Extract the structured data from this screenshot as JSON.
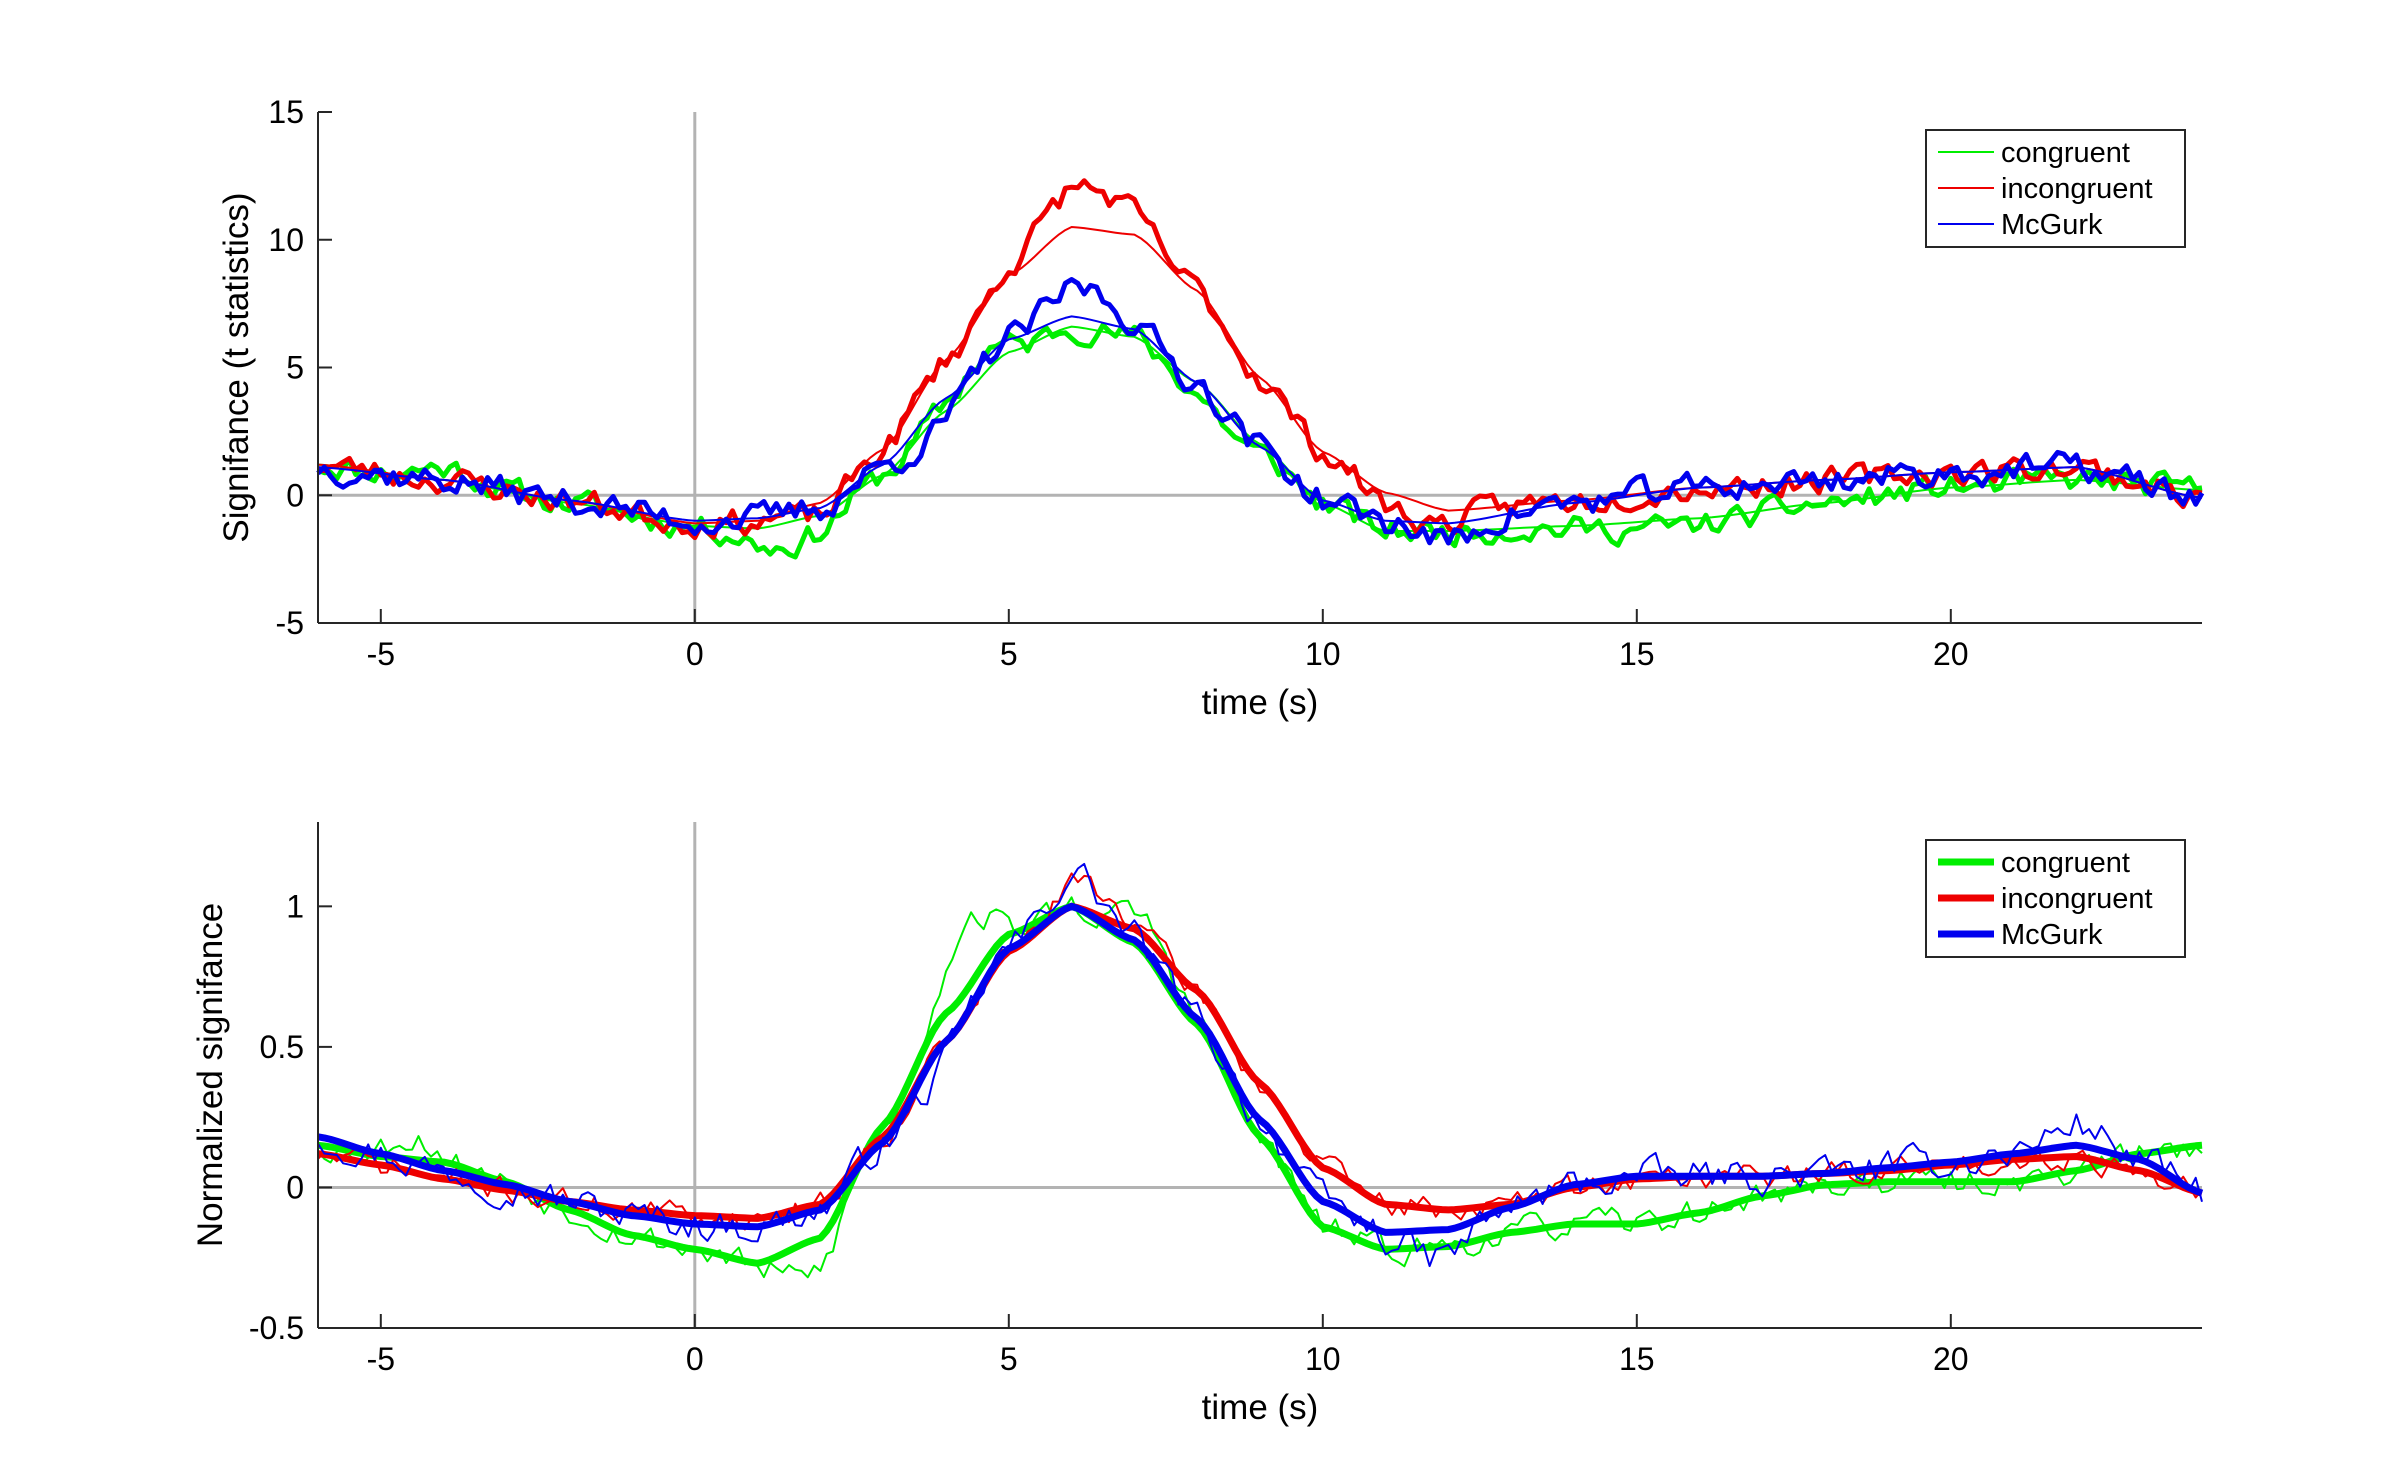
{
  "chart_data": [
    {
      "type": "line",
      "xlabel": "time (s)",
      "ylabel": "Signifance (t statistics)",
      "xlim": [
        -6,
        24
      ],
      "ylim": [
        -5,
        15
      ],
      "xticks": [
        -5,
        0,
        5,
        10,
        15,
        20
      ],
      "yticks": [
        -5,
        0,
        5,
        10,
        15
      ],
      "grid": false,
      "reference_lines": {
        "x": 0,
        "y": 0
      },
      "legend": {
        "position": "top-right",
        "entries": [
          "congruent",
          "incongruent",
          "McGurk"
        ]
      },
      "series": [
        {
          "name": "congruent",
          "color": "#00ee00",
          "style": "thick-noisy-with-thin-fit",
          "fit_x": [
            -6,
            -4,
            -2,
            0,
            1,
            2,
            3,
            4,
            5,
            6,
            7,
            8,
            9,
            10,
            11,
            12,
            14,
            16,
            18,
            20,
            22,
            24
          ],
          "fit_y": [
            1.2,
            0.6,
            -0.3,
            -1.2,
            -1.3,
            -0.8,
            0.8,
            3.3,
            5.6,
            6.6,
            6.2,
            4.4,
            2.0,
            -0.3,
            -1.4,
            -1.4,
            -1.2,
            -0.9,
            -0.3,
            0.3,
            0.6,
            0.2
          ],
          "noise_amp": 0.5,
          "noise_seed": 11,
          "bumps": [
            [
              -4,
              0.5,
              0.6
            ],
            [
              1.5,
              -0.9,
              0.8
            ],
            [
              4.5,
              0.8,
              0.5
            ],
            [
              8.5,
              -0.6,
              0.8
            ],
            [
              15.5,
              -0.3,
              1.5
            ]
          ]
        },
        {
          "name": "incongruent",
          "color": "#ee0000",
          "style": "thick-noisy-with-thin-fit",
          "fit_x": [
            -6,
            -4,
            -2,
            0,
            1,
            2,
            3,
            4,
            5,
            6,
            7,
            8,
            9,
            10,
            11,
            12,
            14,
            16,
            18,
            20,
            22,
            24
          ],
          "fit_y": [
            1.2,
            0.6,
            -0.2,
            -1.1,
            -1.0,
            -0.3,
            1.8,
            5.3,
            8.6,
            10.5,
            10.2,
            8.0,
            4.6,
            1.7,
            0.1,
            -0.6,
            -0.2,
            0.3,
            0.6,
            0.9,
            1.1,
            -0.1
          ],
          "noise_amp": 0.5,
          "noise_seed": 23,
          "bumps": [
            [
              6.2,
              1.6,
              1.0
            ],
            [
              2.0,
              -0.5,
              0.5
            ],
            [
              11.5,
              -0.7,
              0.8
            ]
          ]
        },
        {
          "name": "McGurk",
          "color": "#0000ee",
          "style": "thick-noisy-with-thin-fit",
          "fit_x": [
            -6,
            -4,
            -2,
            0,
            1,
            2,
            3,
            4,
            5,
            6,
            7,
            8,
            9,
            10,
            11,
            12,
            14,
            16,
            18,
            20,
            22,
            24
          ],
          "fit_y": [
            1.1,
            0.6,
            -0.2,
            -1.0,
            -0.9,
            -0.5,
            1.2,
            3.8,
            6.1,
            7.0,
            6.5,
            4.4,
            1.9,
            -0.2,
            -1.0,
            -1.1,
            -0.3,
            0.3,
            0.6,
            0.9,
            1.1,
            -0.1
          ],
          "noise_amp": 0.55,
          "noise_seed": 37,
          "bumps": [
            [
              6.2,
              1.2,
              0.7
            ],
            [
              3.8,
              -1.0,
              0.5
            ],
            [
              12,
              -0.7,
              0.6
            ]
          ]
        }
      ]
    },
    {
      "type": "line",
      "xlabel": "time (s)",
      "ylabel": "Normalized signifance",
      "xlim": [
        -6,
        24
      ],
      "ylim": [
        -0.5,
        1.3
      ],
      "xticks": [
        -5,
        0,
        5,
        10,
        15,
        20
      ],
      "yticks": [
        -0.5,
        0,
        0.5,
        1
      ],
      "grid": false,
      "reference_lines": {
        "x": 0,
        "y": 0
      },
      "legend": {
        "position": "top-right",
        "entries": [
          "congruent",
          "incongruent",
          "McGurk"
        ]
      },
      "series": [
        {
          "name": "congruent",
          "color": "#00ee00",
          "style": "thick-fit-with-thin-noisy",
          "fit_x": [
            -6,
            -5,
            -4,
            -3,
            -2,
            -1,
            0,
            1,
            2,
            3,
            4,
            5,
            6,
            7,
            8,
            9,
            10,
            11,
            12,
            13,
            14,
            15,
            16,
            17,
            18,
            19,
            20,
            21,
            22,
            23,
            24
          ],
          "fit_y": [
            0.15,
            0.11,
            0.09,
            0.02,
            -0.08,
            -0.17,
            -0.22,
            -0.27,
            -0.18,
            0.22,
            0.62,
            0.9,
            1.0,
            0.87,
            0.58,
            0.18,
            -0.14,
            -0.22,
            -0.21,
            -0.16,
            -0.13,
            -0.13,
            -0.09,
            -0.03,
            0.01,
            0.02,
            0.02,
            0.02,
            0.06,
            0.12,
            0.15
          ],
          "noise_amp": 0.05,
          "noise_seed": 53,
          "bumps": [
            [
              4.3,
              0.25,
              0.5
            ],
            [
              7.2,
              0.12,
              0.6
            ],
            [
              1.8,
              -0.12,
              0.6
            ],
            [
              -4.5,
              0.08,
              0.5
            ]
          ]
        },
        {
          "name": "incongruent",
          "color": "#ee0000",
          "style": "thick-fit-with-thin-noisy",
          "fit_x": [
            -6,
            -5,
            -4,
            -3,
            -2,
            -1,
            0,
            1,
            2,
            3,
            4,
            5,
            6,
            7,
            8,
            9,
            10,
            11,
            12,
            13,
            14,
            15,
            16,
            17,
            18,
            19,
            20,
            21,
            22,
            23,
            24
          ],
          "fit_y": [
            0.12,
            0.08,
            0.03,
            -0.01,
            -0.05,
            -0.08,
            -0.1,
            -0.11,
            -0.06,
            0.18,
            0.52,
            0.84,
            1.0,
            0.92,
            0.7,
            0.37,
            0.07,
            -0.06,
            -0.08,
            -0.06,
            0.0,
            0.03,
            0.04,
            0.04,
            0.05,
            0.06,
            0.08,
            0.1,
            0.11,
            0.06,
            -0.02
          ],
          "noise_amp": 0.045,
          "noise_seed": 71,
          "bumps": [
            [
              6.3,
              0.1,
              0.6
            ]
          ]
        },
        {
          "name": "McGurk",
          "color": "#0000ee",
          "style": "thick-fit-with-thin-noisy",
          "fit_x": [
            -6,
            -5,
            -4,
            -3,
            -2,
            -1,
            0,
            1,
            2,
            3,
            4,
            5,
            6,
            7,
            8,
            9,
            10,
            11,
            12,
            13,
            14,
            15,
            16,
            17,
            18,
            19,
            20,
            21,
            22,
            23,
            24
          ],
          "fit_y": [
            0.18,
            0.12,
            0.06,
            0.01,
            -0.05,
            -0.1,
            -0.13,
            -0.14,
            -0.08,
            0.16,
            0.52,
            0.85,
            1.0,
            0.88,
            0.6,
            0.24,
            -0.05,
            -0.16,
            -0.15,
            -0.07,
            0.01,
            0.04,
            0.04,
            0.04,
            0.05,
            0.07,
            0.09,
            0.12,
            0.15,
            0.1,
            -0.02
          ],
          "noise_amp": 0.06,
          "noise_seed": 97,
          "bumps": [
            [
              6.1,
              0.12,
              0.6
            ],
            [
              3.8,
              -0.08,
              0.5
            ],
            [
              11.8,
              -0.1,
              0.6
            ],
            [
              22,
              0.08,
              0.6
            ]
          ]
        }
      ]
    }
  ]
}
